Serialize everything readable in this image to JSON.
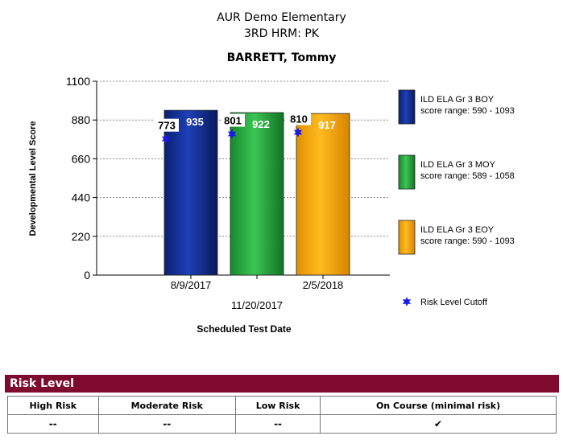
{
  "header": {
    "school": "AUR Demo Elementary",
    "class": "3RD HRM: PK",
    "student": "BARRETT, Tommy"
  },
  "chart_data": {
    "type": "bar",
    "ylabel": "Developmental Level Score",
    "xlabel": "Scheduled Test Date",
    "ylim": [
      0,
      1100
    ],
    "yticks": [
      0,
      220,
      440,
      660,
      880,
      1100
    ],
    "grid": true,
    "categories": [
      "8/9/2017",
      "11/20/2017",
      "2/5/2018"
    ],
    "series": [
      {
        "name": "ILD ELA Gr 3 BOY",
        "range": "score range: 590 - 1093",
        "value": 935,
        "cutoff": 773,
        "color": "#0c2a8a"
      },
      {
        "name": "ILD ELA Gr 3  MOY",
        "range": "score range: 589 - 1058",
        "value": 922,
        "cutoff": 801,
        "color": "#22a13a"
      },
      {
        "name": "ILD ELA Gr 3 EOY",
        "range": "score range: 590 - 1093",
        "value": 917,
        "cutoff": 810,
        "color": "#f5a300"
      }
    ],
    "marker_legend": "Risk Level Cutoff",
    "marker_color": "#1a1ae6"
  },
  "risk": {
    "title": "Risk Level",
    "columns": [
      "High Risk",
      "Moderate Risk",
      "Low Risk",
      "On Course (minimal risk)"
    ],
    "values": [
      "--",
      "--",
      "--",
      "✔"
    ]
  }
}
